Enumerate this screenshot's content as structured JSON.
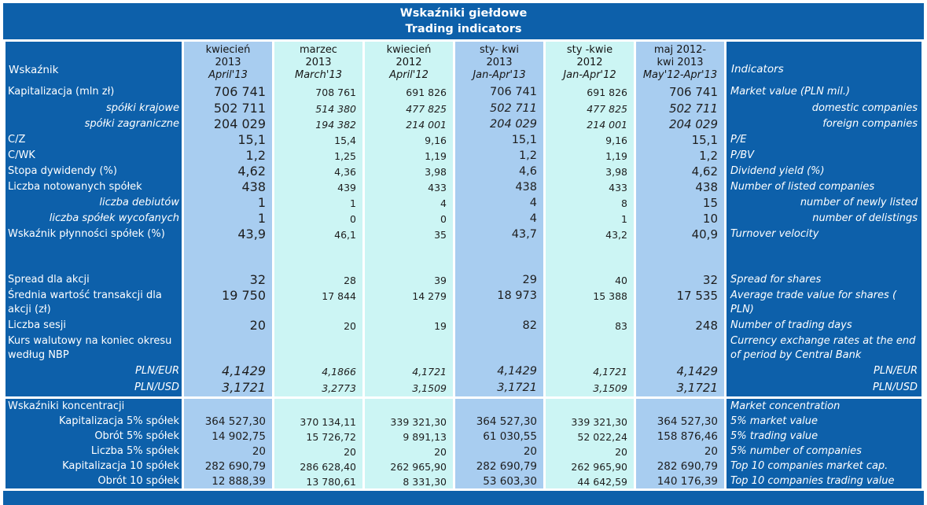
{
  "title": {
    "line1": "Wskaźniki giełdowe",
    "line2": "Trading indicators"
  },
  "colors": {
    "navy": "#0d60aa",
    "column_blue": "#a8cdf0",
    "column_cyan": "#ccf5f4",
    "value_text": "#1e1e1e",
    "separator": "#ffffff"
  },
  "header": {
    "label_pl": "Wskaźnik",
    "label_en": "Indicators",
    "columns": [
      {
        "lines": [
          "kwiecień",
          "2013",
          "April'13"
        ],
        "variant": "blue"
      },
      {
        "lines": [
          "marzec",
          "2013",
          "March'13"
        ],
        "variant": "cyan"
      },
      {
        "lines": [
          "kwiecień",
          "2012",
          "April'12"
        ],
        "variant": "cyan"
      },
      {
        "lines": [
          "sty- kwi",
          "2013",
          "Jan-Apr'13"
        ],
        "variant": "blue"
      },
      {
        "lines": [
          "sty -kwie",
          "2012",
          "Jan-Apr'12"
        ],
        "variant": "cyan"
      },
      {
        "lines": [
          "maj 2012-",
          "kwi 2013",
          "May'12-Apr'13"
        ],
        "variant": "blue"
      }
    ]
  },
  "rows": [
    {
      "kind": "data",
      "h": "tall",
      "pl": "Kapitalizacja (mln zł)",
      "en": "Market value (PLN mil.)",
      "values": [
        "706 741",
        "708 761",
        "691 826",
        "706 741",
        "691 826",
        "706 741"
      ]
    },
    {
      "kind": "data",
      "pl": "spółki krajowe",
      "en": "domestic companies",
      "plAlign": "right",
      "enAlign": "right",
      "plItalic": true,
      "valItalic": true,
      "firstUpright": true,
      "values": [
        "502 711",
        "514 380",
        "477 825",
        "502 711",
        "477 825",
        "502 711"
      ]
    },
    {
      "kind": "data",
      "pl": "spółki zagraniczne",
      "en": "foreign companies",
      "plAlign": "right",
      "enAlign": "right",
      "plItalic": true,
      "valItalic": true,
      "firstUpright": true,
      "values": [
        "204 029",
        "194 382",
        "214 001",
        "204 029",
        "214 001",
        "204 029"
      ]
    },
    {
      "kind": "data",
      "pl": "C/Z",
      "en": "P/E",
      "values": [
        "15,1",
        "15,4",
        "9,16",
        "15,1",
        "9,16",
        "15,1"
      ]
    },
    {
      "kind": "data",
      "pl": "C/WK",
      "en": "P/BV",
      "values": [
        "1,2",
        "1,25",
        "1,19",
        "1,2",
        "1,19",
        "1,2"
      ]
    },
    {
      "kind": "data",
      "pl": "Stopa dywidendy (%)",
      "en": "Dividend yield (%)",
      "values": [
        "4,62",
        "4,36",
        "3,98",
        "4,6",
        "3,98",
        "4,62"
      ]
    },
    {
      "kind": "data",
      "pl": "Liczba notowanych spółek",
      "en": "Number of listed companies",
      "values": [
        "438",
        "439",
        "433",
        "438",
        "433",
        "438"
      ]
    },
    {
      "kind": "data",
      "pl": "liczba debiutów",
      "en": "number of newly listed",
      "plAlign": "right",
      "enAlign": "right",
      "plItalic": true,
      "values": [
        "1",
        "1",
        "4",
        "4",
        "8",
        "15"
      ]
    },
    {
      "kind": "data",
      "pl": "liczba spółek wycofanych",
      "en": "number of delistings",
      "plAlign": "right",
      "enAlign": "right",
      "plItalic": true,
      "values": [
        "1",
        "0",
        "0",
        "4",
        "1",
        "10"
      ]
    },
    {
      "kind": "data",
      "pl": "Wskaźnik płynności spółek (%)",
      "en": "Turnover velocity",
      "values": [
        "43,9",
        "46,1",
        "35",
        "43,7",
        "43,2",
        "40,9"
      ]
    },
    {
      "kind": "blank",
      "h": "dbl"
    },
    {
      "kind": "data",
      "pl": "Spread dla akcji",
      "en": "Spread for shares",
      "values": [
        "32",
        "28",
        "39",
        "29",
        "40",
        "32"
      ]
    },
    {
      "kind": "data",
      "h": "dbl",
      "pl": "Średnia wartość transakcji dla akcji (zł)",
      "en": "Average trade value for shares ( PLN)",
      "values": [
        "19 750",
        "17 844",
        "14 279",
        "18 973",
        "15 388",
        "17 535"
      ]
    },
    {
      "kind": "data",
      "pl": "Liczba sesji",
      "en": "Number of trading days",
      "values": [
        "20",
        "20",
        "19",
        "82",
        "83",
        "248"
      ]
    },
    {
      "kind": "data",
      "h": "dbl",
      "pl": "Kurs walutowy na koniec okresu według NBP",
      "en": "Currency exchange rates at the end of period by Central Bank",
      "values": [
        "",
        "",
        "",
        "",
        "",
        ""
      ]
    },
    {
      "kind": "data",
      "h": "tall",
      "pl": "PLN/EUR",
      "en": "PLN/EUR",
      "plAlign": "right",
      "enAlign": "right",
      "plItalic": true,
      "enItalic": true,
      "valItalic": true,
      "values": [
        "4,1429",
        "4,1866",
        "4,1721",
        "4,1429",
        "4,1721",
        "4,1429"
      ]
    },
    {
      "kind": "data",
      "h": "tall",
      "pl": "PLN/USD",
      "en": "PLN/USD",
      "plAlign": "right",
      "enAlign": "right",
      "plItalic": true,
      "enItalic": true,
      "valItalic": true,
      "values": [
        "3,1721",
        "3,2773",
        "3,1509",
        "3,1721",
        "3,1509",
        "3,1721"
      ]
    },
    {
      "kind": "sep"
    },
    {
      "kind": "data",
      "pl": "Wskaźniki koncentracji",
      "en": "Market concentration",
      "values": [
        "",
        "",
        "",
        "",
        "",
        ""
      ]
    },
    {
      "kind": "data",
      "small": true,
      "pl": "Kapitalizacja 5% spółek",
      "en": "5% market value",
      "plAlign": "right",
      "values": [
        "364 527,30",
        "370 134,11",
        "339 321,30",
        "364 527,30",
        "339 321,30",
        "364 527,30"
      ]
    },
    {
      "kind": "data",
      "small": true,
      "pl": "Obrót 5% spółek",
      "en": "5% trading value",
      "plAlign": "right",
      "values": [
        "14 902,75",
        "15 726,72",
        "9 891,13",
        "61 030,55",
        "52 022,24",
        "158 876,46"
      ]
    },
    {
      "kind": "data",
      "small": true,
      "pl": "Liczba 5% spółek",
      "en": "5% number of companies",
      "plAlign": "right",
      "values": [
        "20",
        "20",
        "20",
        "20",
        "20",
        "20"
      ]
    },
    {
      "kind": "data",
      "small": true,
      "pl": "Kapitalizacja 10 spółek",
      "en": "Top 10 companies market cap.",
      "plAlign": "right",
      "values": [
        "282 690,79",
        "286 628,40",
        "262 965,90",
        "282 690,79",
        "262 965,90",
        "282 690,79"
      ]
    },
    {
      "kind": "data",
      "small": true,
      "pl": "Obrót 10 spółek",
      "en": "Top 10 companies trading value",
      "plAlign": "right",
      "values": [
        "12 888,39",
        "13 780,61",
        "8 331,30",
        "53 603,30",
        "44 642,59",
        "140 176,39"
      ]
    }
  ]
}
